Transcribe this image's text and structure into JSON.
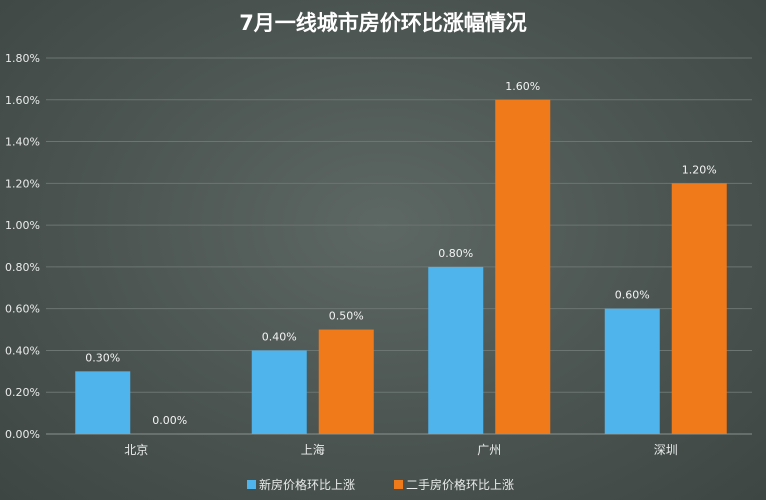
{
  "chart_data": {
    "type": "bar",
    "title": "7月一线城市房价环比涨幅情况",
    "categories": [
      "北京",
      "上海",
      "广州",
      "深圳"
    ],
    "series": [
      {
        "name": "新房价格环比上涨",
        "values": [
          0.3,
          0.4,
          0.8,
          0.6
        ],
        "labels": [
          "0.30%",
          "0.40%",
          "0.80%",
          "0.60%"
        ],
        "color": "#4fb4ec"
      },
      {
        "name": "二手房价格环比上涨",
        "values": [
          0.0,
          0.5,
          1.6,
          1.2
        ],
        "labels": [
          "0.00%",
          "0.50%",
          "1.60%",
          "1.20%"
        ],
        "color": "#f07a1a"
      }
    ],
    "ylim": [
      0,
      1.8
    ],
    "yticks": [
      "0.00%",
      "0.20%",
      "0.40%",
      "0.60%",
      "0.80%",
      "1.00%",
      "1.20%",
      "1.40%",
      "1.60%",
      "1.80%"
    ],
    "grid": true,
    "legend_position": "bottom"
  }
}
